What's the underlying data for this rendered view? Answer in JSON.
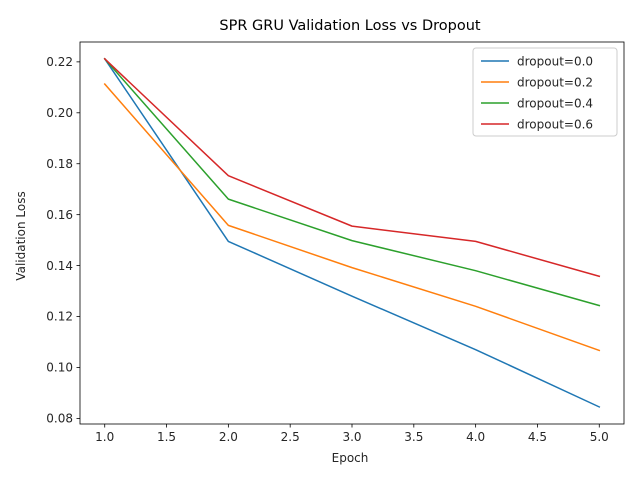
{
  "chart_data": {
    "type": "line",
    "title": "SPR GRU Validation Loss vs Dropout",
    "xlabel": "Epoch",
    "ylabel": "Validation Loss",
    "x": [
      1,
      2,
      3,
      4,
      5
    ],
    "xlim": [
      0.8,
      5.2
    ],
    "ylim": [
      0.0778,
      0.2278
    ],
    "xticks": [
      "1.0",
      "1.5",
      "2.0",
      "2.5",
      "3.0",
      "3.5",
      "4.0",
      "4.5",
      "5.0"
    ],
    "yticks": [
      "0.08",
      "0.10",
      "0.12",
      "0.14",
      "0.16",
      "0.18",
      "0.20",
      "0.22"
    ],
    "grid": false,
    "legend_position": "top-right",
    "series": [
      {
        "name": "dropout=0.0",
        "color": "#1f77b4",
        "values": [
          0.2212,
          0.1495,
          0.128,
          0.107,
          0.0845
        ]
      },
      {
        "name": "dropout=0.2",
        "color": "#ff7f0e",
        "values": [
          0.2113,
          0.1558,
          0.1392,
          0.124,
          0.1067
        ]
      },
      {
        "name": "dropout=0.4",
        "color": "#2ca02c",
        "values": [
          0.2212,
          0.1661,
          0.1498,
          0.138,
          0.1243
        ]
      },
      {
        "name": "dropout=0.6",
        "color": "#d62728",
        "values": [
          0.2212,
          0.1753,
          0.1555,
          0.1495,
          0.1358
        ]
      }
    ]
  }
}
